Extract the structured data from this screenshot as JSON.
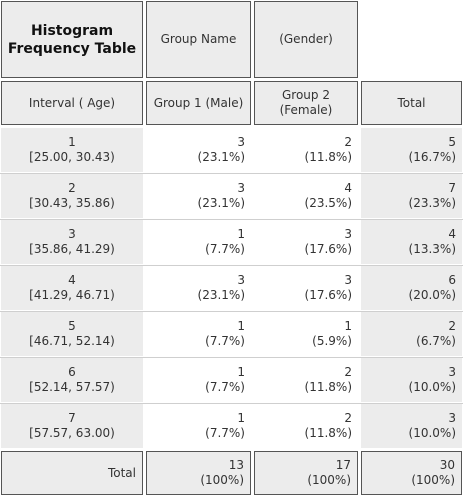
{
  "header": {
    "title_line1": "Histogram",
    "title_line2": "Frequency Table",
    "group_name": "Group Name",
    "gender": "(Gender)",
    "interval_label": "Interval ( Age)",
    "group1_label": "Group 1 (Male)",
    "group2_line1": "Group 2",
    "group2_line2": "(Female)",
    "total_label": "Total"
  },
  "rows": [
    {
      "index": "1",
      "range": "[25.00, 30.43)",
      "g1_count": "3",
      "g1_pct": "(23.1%)",
      "g2_count": "2",
      "g2_pct": "(11.8%)",
      "t_count": "5",
      "t_pct": "(16.7%)"
    },
    {
      "index": "2",
      "range": "[30.43, 35.86)",
      "g1_count": "3",
      "g1_pct": "(23.1%)",
      "g2_count": "4",
      "g2_pct": "(23.5%)",
      "t_count": "7",
      "t_pct": "(23.3%)"
    },
    {
      "index": "3",
      "range": "[35.86, 41.29)",
      "g1_count": "1",
      "g1_pct": "(7.7%)",
      "g2_count": "3",
      "g2_pct": "(17.6%)",
      "t_count": "4",
      "t_pct": "(13.3%)"
    },
    {
      "index": "4",
      "range": "[41.29, 46.71)",
      "g1_count": "3",
      "g1_pct": "(23.1%)",
      "g2_count": "3",
      "g2_pct": "(17.6%)",
      "t_count": "6",
      "t_pct": "(20.0%)"
    },
    {
      "index": "5",
      "range": "[46.71, 52.14)",
      "g1_count": "1",
      "g1_pct": "(7.7%)",
      "g2_count": "1",
      "g2_pct": "(5.9%)",
      "t_count": "2",
      "t_pct": "(6.7%)"
    },
    {
      "index": "6",
      "range": "[52.14, 57.57)",
      "g1_count": "1",
      "g1_pct": "(7.7%)",
      "g2_count": "2",
      "g2_pct": "(11.8%)",
      "t_count": "3",
      "t_pct": "(10.0%)"
    },
    {
      "index": "7",
      "range": "[57.57, 63.00)",
      "g1_count": "1",
      "g1_pct": "(7.7%)",
      "g2_count": "2",
      "g2_pct": "(11.8%)",
      "t_count": "3",
      "t_pct": "(10.0%)"
    }
  ],
  "totals": {
    "label": "Total",
    "g1_count": "13",
    "g1_pct": "(100%)",
    "g2_count": "17",
    "g2_pct": "(100%)",
    "t_count": "30",
    "t_pct": "(100%)"
  }
}
